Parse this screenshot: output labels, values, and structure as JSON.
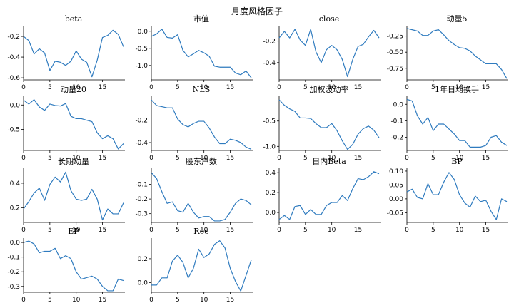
{
  "title": "月度风格因子",
  "style": {
    "line_color": "#2f7bbf"
  },
  "chart_data": [
    {
      "type": "line",
      "title": "beta",
      "x": [
        0,
        1,
        2,
        3,
        4,
        5,
        6,
        7,
        8,
        9,
        10,
        11,
        12,
        13,
        14,
        15,
        16,
        17,
        18,
        19
      ],
      "values": [
        -0.2,
        -0.24,
        -0.37,
        -0.32,
        -0.36,
        -0.53,
        -0.44,
        -0.45,
        -0.48,
        -0.44,
        -0.34,
        -0.42,
        -0.45,
        -0.59,
        -0.43,
        -0.21,
        -0.19,
        -0.14,
        -0.18,
        -0.3
      ],
      "ylim": [
        -0.62,
        -0.11
      ],
      "yticks": [
        -0.6,
        -0.4,
        -0.2
      ],
      "ytick_labels": [
        "-0.6",
        "-0.4",
        "-0.2"
      ],
      "xticks": [
        0,
        5,
        10,
        15
      ],
      "xtick_labels": [
        "0",
        "5",
        "10",
        "15"
      ]
    },
    {
      "type": "line",
      "title": "市值",
      "x": [
        0,
        1,
        2,
        3,
        4,
        5,
        6,
        7,
        8,
        9,
        10,
        11,
        12,
        13,
        14,
        15,
        16,
        17,
        18,
        19
      ],
      "values": [
        -0.15,
        -0.08,
        0.06,
        -0.18,
        -0.2,
        -0.1,
        -0.56,
        -0.75,
        -0.66,
        -0.56,
        -0.63,
        -0.73,
        -1.02,
        -1.05,
        -1.05,
        -1.05,
        -1.22,
        -1.27,
        -1.16,
        -1.36
      ],
      "ylim": [
        -1.42,
        0.12
      ],
      "yticks": [
        -1.0,
        -0.5,
        0.0
      ],
      "ytick_labels": [
        "-1.0",
        "-0.5",
        "0.0"
      ],
      "xticks": [
        0,
        5,
        10,
        15
      ],
      "xtick_labels": [
        "0",
        "5",
        "10",
        "15"
      ]
    },
    {
      "type": "line",
      "title": "close",
      "x": [
        0,
        1,
        2,
        3,
        4,
        5,
        6,
        7,
        8,
        9,
        10,
        11,
        12,
        13,
        14,
        15,
        16,
        17,
        18,
        19
      ],
      "values": [
        -0.17,
        -0.11,
        -0.17,
        -0.09,
        -0.19,
        -0.24,
        -0.09,
        -0.3,
        -0.4,
        -0.28,
        -0.24,
        -0.28,
        -0.37,
        -0.53,
        -0.37,
        -0.25,
        -0.23,
        -0.16,
        -0.1,
        -0.17
      ],
      "ylim": [
        -0.56,
        -0.07
      ],
      "yticks": [
        -0.4,
        -0.2
      ],
      "ytick_labels": [
        "-0.4",
        "-0.2"
      ],
      "xticks": [
        0,
        5,
        10,
        15
      ],
      "xtick_labels": [
        "0",
        "5",
        "10",
        "15"
      ]
    },
    {
      "type": "line",
      "title": "动量5",
      "x": [
        0,
        1,
        2,
        3,
        4,
        5,
        6,
        7,
        8,
        9,
        10,
        11,
        12,
        13,
        14,
        15,
        16,
        17,
        18,
        19
      ],
      "values": [
        -0.13,
        -0.15,
        -0.17,
        -0.24,
        -0.24,
        -0.17,
        -0.15,
        -0.23,
        -0.32,
        -0.38,
        -0.43,
        -0.44,
        -0.48,
        -0.56,
        -0.62,
        -0.68,
        -0.68,
        -0.68,
        -0.77,
        -0.91
      ],
      "ylim": [
        -0.93,
        -0.11
      ],
      "yticks": [
        -0.75,
        -0.5,
        -0.25
      ],
      "ytick_labels": [
        "-0.75",
        "-0.50",
        "-0.25"
      ],
      "xticks": [
        0,
        5,
        10,
        15
      ],
      "xtick_labels": [
        "0",
        "5",
        "10",
        "15"
      ]
    },
    {
      "type": "line",
      "title": "动量20",
      "x": [
        0,
        1,
        2,
        3,
        4,
        5,
        6,
        7,
        8,
        9,
        10,
        11,
        12,
        13,
        14,
        15,
        16,
        17,
        18,
        19
      ],
      "values": [
        0.1,
        0.02,
        0.11,
        -0.04,
        -0.11,
        0.02,
        -0.01,
        -0.02,
        0.03,
        -0.23,
        -0.28,
        -0.28,
        -0.31,
        -0.34,
        -0.57,
        -0.69,
        -0.63,
        -0.69,
        -0.9,
        -0.79
      ],
      "ylim": [
        -0.93,
        0.15
      ],
      "yticks": [
        -0.5,
        0.0
      ],
      "ytick_labels": [
        "-0.5",
        "0.0"
      ],
      "xticks": [
        0,
        5,
        10,
        15
      ],
      "xtick_labels": [
        "0",
        "5",
        "10",
        "15"
      ]
    },
    {
      "type": "line",
      "title": "NLS",
      "x": [
        0,
        1,
        2,
        3,
        4,
        5,
        6,
        7,
        8,
        9,
        10,
        11,
        12,
        13,
        14,
        15,
        16,
        17,
        18,
        19
      ],
      "values": [
        -0.02,
        -0.07,
        -0.08,
        -0.09,
        -0.09,
        -0.19,
        -0.24,
        -0.26,
        -0.23,
        -0.21,
        -0.21,
        -0.27,
        -0.35,
        -0.41,
        -0.41,
        -0.37,
        -0.38,
        -0.4,
        -0.44,
        -0.46
      ],
      "ylim": [
        -0.47,
        0.0
      ],
      "yticks": [
        -0.4,
        -0.2
      ],
      "ytick_labels": [
        "-0.4",
        "-0.2"
      ],
      "xticks": [
        0,
        5,
        10,
        15
      ],
      "xtick_labels": [
        "0",
        "5",
        "10",
        "15"
      ]
    },
    {
      "type": "line",
      "title": "加权波动率",
      "x": [
        0,
        1,
        2,
        3,
        4,
        5,
        6,
        7,
        8,
        9,
        10,
        11,
        12,
        13,
        14,
        15,
        16,
        17,
        18,
        19
      ],
      "values": [
        -0.08,
        -0.19,
        -0.26,
        -0.31,
        -0.44,
        -0.44,
        -0.45,
        -0.55,
        -0.63,
        -0.63,
        -0.55,
        -0.69,
        -0.89,
        -1.06,
        -0.96,
        -0.76,
        -0.65,
        -0.6,
        -0.68,
        -0.83
      ],
      "ylim": [
        -1.08,
        -0.04
      ],
      "yticks": [
        -1.0,
        -0.5
      ],
      "ytick_labels": [
        "-1.0",
        "-0.5"
      ],
      "xticks": [
        0,
        5,
        10,
        15
      ],
      "xtick_labels": [
        "0",
        "5",
        "10",
        "15"
      ]
    },
    {
      "type": "line",
      "title": "1年日均换手",
      "x": [
        0,
        1,
        2,
        3,
        4,
        5,
        6,
        7,
        8,
        9,
        10,
        11,
        12,
        13,
        14,
        15,
        16,
        17,
        18,
        19
      ],
      "values": [
        0.03,
        0.02,
        -0.07,
        -0.12,
        -0.08,
        -0.16,
        -0.12,
        -0.12,
        -0.15,
        -0.18,
        -0.22,
        -0.22,
        -0.26,
        -0.26,
        -0.26,
        -0.25,
        -0.2,
        -0.19,
        -0.23,
        -0.25
      ],
      "ylim": [
        -0.28,
        0.04
      ],
      "yticks": [
        -0.2,
        -0.1,
        0.0
      ],
      "ytick_labels": [
        "-0.2",
        "-0.1",
        "0.0"
      ],
      "xticks": [
        0,
        5,
        10,
        15
      ],
      "xtick_labels": [
        "0",
        "5",
        "10",
        "15"
      ]
    },
    {
      "type": "line",
      "title": "长期动量",
      "x": [
        0,
        1,
        2,
        3,
        4,
        5,
        6,
        7,
        8,
        9,
        10,
        11,
        12,
        13,
        14,
        15,
        16,
        17,
        18,
        19
      ],
      "values": [
        0.19,
        0.25,
        0.32,
        0.36,
        0.26,
        0.39,
        0.45,
        0.41,
        0.49,
        0.34,
        0.27,
        0.26,
        0.27,
        0.35,
        0.27,
        0.1,
        0.19,
        0.15,
        0.15,
        0.24
      ],
      "ylim": [
        0.08,
        0.51
      ],
      "yticks": [
        0.2,
        0.4
      ],
      "ytick_labels": [
        "0.2",
        "0.4"
      ],
      "xticks": [
        0,
        5,
        10,
        15
      ],
      "xtick_labels": [
        "0",
        "5",
        "10",
        "15"
      ]
    },
    {
      "type": "line",
      "title": "股东户数",
      "x": [
        0,
        1,
        2,
        3,
        4,
        5,
        6,
        7,
        8,
        9,
        10,
        11,
        12,
        13,
        14,
        15,
        16,
        17,
        18,
        19
      ],
      "values": [
        -0.02,
        -0.06,
        -0.15,
        -0.23,
        -0.22,
        -0.28,
        -0.29,
        -0.23,
        -0.29,
        -0.33,
        -0.32,
        -0.32,
        -0.35,
        -0.35,
        -0.34,
        -0.29,
        -0.23,
        -0.2,
        -0.21,
        -0.24
      ],
      "ylim": [
        -0.36,
        0.0
      ],
      "yticks": [
        -0.3,
        -0.2,
        -0.1
      ],
      "ytick_labels": [
        "-0.3",
        "-0.2",
        "-0.1"
      ],
      "xticks": [
        0,
        5,
        10,
        15
      ],
      "xtick_labels": [
        "0",
        "5",
        "10",
        "15"
      ]
    },
    {
      "type": "line",
      "title": "日内Beta",
      "x": [
        0,
        1,
        2,
        3,
        4,
        5,
        6,
        7,
        8,
        9,
        10,
        11,
        12,
        13,
        14,
        15,
        16,
        17,
        18,
        19
      ],
      "values": [
        -0.07,
        -0.03,
        -0.07,
        0.06,
        0.07,
        -0.02,
        0.03,
        -0.02,
        -0.02,
        0.07,
        0.1,
        0.1,
        0.17,
        0.12,
        0.24,
        0.34,
        0.33,
        0.36,
        0.41,
        0.39
      ],
      "ylim": [
        -0.1,
        0.43
      ],
      "yticks": [
        0.0,
        0.2,
        0.4
      ],
      "ytick_labels": [
        "0.0",
        "0.2",
        "0.4"
      ],
      "xticks": [
        0,
        5,
        10,
        15
      ],
      "xtick_labels": [
        "0",
        "5",
        "10",
        "15"
      ]
    },
    {
      "type": "line",
      "title": "BP",
      "x": [
        0,
        1,
        2,
        3,
        4,
        5,
        6,
        7,
        8,
        9,
        10,
        11,
        12,
        13,
        14,
        15,
        16,
        17,
        18,
        19
      ],
      "values": [
        0.025,
        0.035,
        0.005,
        0.0,
        0.055,
        0.015,
        0.015,
        0.06,
        0.095,
        0.07,
        0.015,
        -0.015,
        -0.03,
        0.01,
        -0.01,
        -0.005,
        -0.045,
        -0.075,
        0.0,
        -0.01
      ],
      "ylim": [
        -0.085,
        0.105
      ],
      "yticks": [
        -0.05,
        0.0,
        0.05,
        0.1
      ],
      "ytick_labels": [
        "-0.05",
        "0.00",
        "0.05",
        "0.10"
      ],
      "xticks": [
        0,
        5,
        10,
        15
      ],
      "xtick_labels": [
        "0",
        "5",
        "10",
        "15"
      ]
    },
    {
      "type": "line",
      "title": "EP",
      "x": [
        0,
        1,
        2,
        3,
        4,
        5,
        6,
        7,
        8,
        9,
        10,
        11,
        12,
        13,
        14,
        15,
        16,
        17,
        18,
        19
      ],
      "values": [
        0.0,
        0.01,
        -0.01,
        -0.07,
        -0.06,
        -0.06,
        -0.04,
        -0.11,
        -0.09,
        -0.11,
        -0.2,
        -0.25,
        -0.24,
        -0.23,
        -0.25,
        -0.3,
        -0.33,
        -0.33,
        -0.25,
        -0.26
      ],
      "ylim": [
        -0.34,
        0.02
      ],
      "yticks": [
        -0.3,
        -0.2,
        -0.1,
        0.0
      ],
      "ytick_labels": [
        "-0.3",
        "-0.2",
        "-0.1",
        "0.0"
      ],
      "xticks": [
        0,
        5,
        10,
        15
      ],
      "xtick_labels": [
        "0",
        "5",
        "10",
        "15"
      ]
    },
    {
      "type": "line",
      "title": "Roe",
      "x": [
        0,
        1,
        2,
        3,
        4,
        5,
        6,
        7,
        8,
        9,
        10,
        11,
        12,
        13,
        14,
        15,
        16,
        17,
        18,
        19
      ],
      "values": [
        -0.02,
        -0.02,
        0.04,
        0.04,
        0.18,
        0.23,
        0.17,
        0.04,
        0.12,
        0.28,
        0.21,
        0.24,
        0.32,
        0.35,
        0.29,
        0.12,
        0.01,
        -0.07,
        0.06,
        0.19
      ],
      "ylim": [
        -0.08,
        0.36
      ],
      "yticks": [
        0.0,
        0.2
      ],
      "ytick_labels": [
        "0.0",
        "0.2"
      ],
      "xticks": [
        0,
        5,
        10,
        15
      ],
      "xtick_labels": [
        "0",
        "5",
        "10",
        "15"
      ]
    }
  ]
}
